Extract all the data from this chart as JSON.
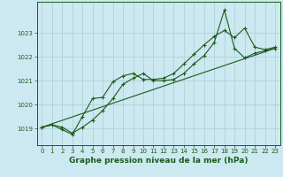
{
  "title": "Graphe pression niveau de la mer (hPa)",
  "background_color": "#cce8f0",
  "grid_color": "#aaccd8",
  "line_color": "#1a5c1a",
  "xlim": [
    -0.5,
    23.5
  ],
  "ylim": [
    1018.3,
    1024.3
  ],
  "xticks": [
    0,
    1,
    2,
    3,
    4,
    5,
    6,
    7,
    8,
    9,
    10,
    11,
    12,
    13,
    14,
    15,
    16,
    17,
    18,
    19,
    20,
    21,
    22,
    23
  ],
  "yticks": [
    1019,
    1020,
    1021,
    1022,
    1023
  ],
  "series1_x": [
    0,
    1,
    2,
    3,
    4,
    5,
    6,
    7,
    8,
    9,
    10,
    11,
    12,
    13,
    14,
    15,
    16,
    17,
    18,
    19,
    20,
    21,
    22,
    23
  ],
  "series1_y": [
    1019.05,
    1019.15,
    1018.95,
    1018.75,
    1019.5,
    1020.25,
    1020.3,
    1020.95,
    1021.2,
    1021.3,
    1021.05,
    1021.05,
    1021.1,
    1021.3,
    1021.7,
    1022.1,
    1022.5,
    1022.85,
    1023.1,
    1022.8,
    1023.2,
    1022.4,
    1022.3,
    1022.4
  ],
  "series2_x": [
    0,
    1,
    2,
    3,
    4,
    5,
    6,
    7,
    8,
    9,
    10,
    11,
    12,
    13,
    14,
    15,
    16,
    17,
    18,
    19,
    20,
    21,
    22,
    23
  ],
  "series2_y": [
    1019.05,
    1019.15,
    1019.05,
    1018.8,
    1019.05,
    1019.35,
    1019.75,
    1020.25,
    1020.85,
    1021.1,
    1021.3,
    1021.0,
    1021.0,
    1021.05,
    1021.3,
    1021.7,
    1022.05,
    1022.6,
    1023.95,
    1022.35,
    1021.95,
    1022.15,
    1022.25,
    1022.35
  ],
  "series3_x": [
    0,
    23
  ],
  "series3_y": [
    1019.05,
    1022.35
  ]
}
